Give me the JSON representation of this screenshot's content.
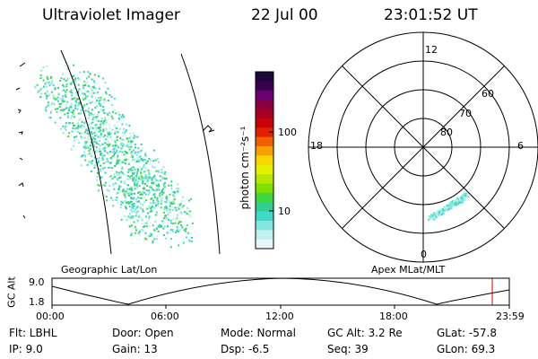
{
  "header": {
    "title": "Ultraviolet Imager",
    "date": "22 Jul 00",
    "time": "23:01:52 UT"
  },
  "colorbar": {
    "unit_label": "photon cm⁻²s⁻¹",
    "ticks": [
      "100",
      "10"
    ],
    "scale": "log",
    "colors": [
      "#1a0a3a",
      "#3a0050",
      "#6a0070",
      "#8a0040",
      "#a80020",
      "#c8000a",
      "#e02000",
      "#f06000",
      "#f8a000",
      "#f8d800",
      "#e8f000",
      "#b8e800",
      "#80e000",
      "#40d840",
      "#30d090",
      "#40d8c8",
      "#80e8e0",
      "#c0f0f0",
      "#e8f8f8"
    ]
  },
  "geo_panel": {
    "label": "Geographic Lat/Lon"
  },
  "polar_plot": {
    "label": "Apex MLat/MLT",
    "mlt_labels": [
      "12",
      "18",
      "6",
      "0"
    ],
    "lat_labels": [
      "60",
      "70",
      "80"
    ]
  },
  "altitude_plot": {
    "ylabel": "GC Alt",
    "ymax": "9.0",
    "ymin": "1.8",
    "x_ticks": [
      "00:00",
      "06:00",
      "12:00",
      "18:00",
      "23:59"
    ],
    "cursor_color": "#cc0000"
  },
  "status": {
    "flt": "Flt: LBHL",
    "ip": "IP:  9.0",
    "door": "Door: Open",
    "gain": "Gain: 13",
    "mode": "Mode: Normal",
    "dsp": "Dsp:    -6.5",
    "gc_alt": "GC Alt: 3.2 Re",
    "seq": "Seq: 39",
    "glat": "GLat: -57.8",
    "glon": "GLon:  69.3"
  }
}
